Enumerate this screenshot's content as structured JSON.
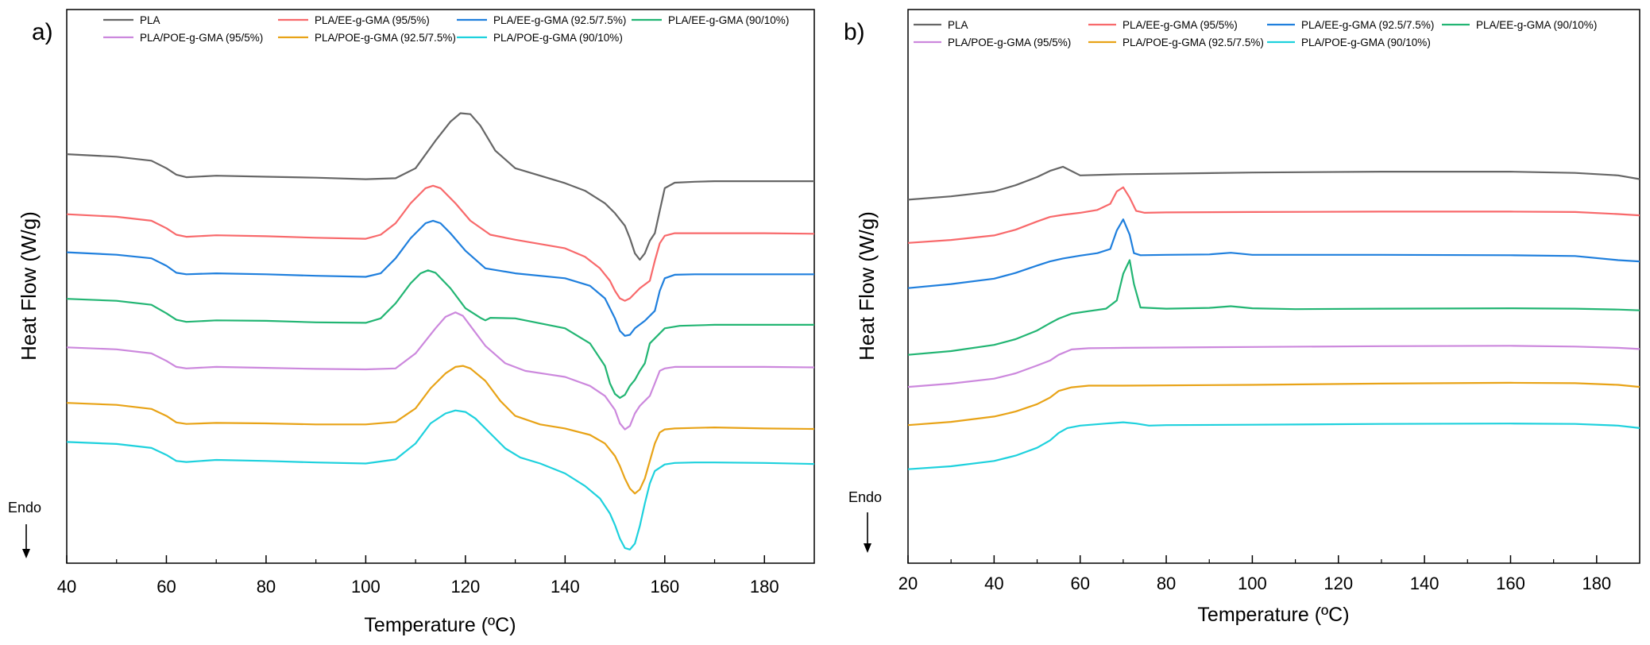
{
  "chart_data": [
    {
      "panel_label": "a)",
      "type": "line",
      "title": "",
      "xlabel": "Temperature (ºC)",
      "ylabel": "Heat Flow (W/g)",
      "xlim": [
        40,
        190
      ],
      "xticks": [
        40,
        60,
        80,
        100,
        120,
        140,
        160,
        180
      ],
      "ylim": [
        0,
        100
      ],
      "y_ticks_shown": false,
      "endo_label": "Endo",
      "legend_position": "top",
      "series": [
        {
          "name": "PLA",
          "color": "#666666",
          "x": [
            40,
            50,
            57,
            60,
            62,
            64,
            70,
            80,
            90,
            100,
            106,
            110,
            114,
            117,
            119,
            121,
            123,
            126,
            130,
            135,
            140,
            144,
            148,
            150,
            152,
            153,
            154,
            155,
            156,
            157,
            158,
            159,
            160,
            162,
            166,
            170,
            180,
            190
          ],
          "y": [
            80.3,
            79.8,
            79,
            77.5,
            76.2,
            75.7,
            76,
            75.8,
            75.6,
            75.3,
            75.5,
            77.5,
            83,
            86.8,
            88.5,
            88.3,
            86,
            81,
            77.5,
            76,
            74.5,
            73,
            70.5,
            68.5,
            66,
            63.5,
            60.5,
            59.2,
            60.5,
            63,
            64.5,
            69,
            73.5,
            74.6,
            74.8,
            74.9,
            74.9,
            74.9
          ]
        },
        {
          "name": "PLA/EE-g-GMA (95/5%)",
          "color": "#F8696B",
          "x": [
            40,
            50,
            57,
            60,
            62,
            64,
            70,
            80,
            90,
            100,
            103,
            106,
            109,
            112,
            113.5,
            115,
            118,
            121,
            125,
            130,
            140,
            144,
            147,
            149,
            150,
            151,
            152,
            153,
            155,
            157,
            158,
            159,
            160,
            162,
            166,
            170,
            180,
            190
          ],
          "y": [
            68.3,
            67.8,
            67,
            65.5,
            64.2,
            63.8,
            64.1,
            63.9,
            63.6,
            63.4,
            64.2,
            66.5,
            70.5,
            73.5,
            74,
            73.5,
            70.5,
            67,
            64.2,
            63.2,
            61.5,
            59.8,
            57.5,
            55,
            53,
            51.5,
            51,
            51.5,
            53.5,
            55,
            59,
            62.5,
            64,
            64.5,
            64.5,
            64.5,
            64.5,
            64.4
          ]
        },
        {
          "name": "PLA/EE-g-GMA (92.5/7.5%)",
          "color": "#1F7FDD",
          "x": [
            40,
            50,
            57,
            60,
            62,
            64,
            70,
            80,
            90,
            100,
            103,
            106,
            109,
            112,
            113.5,
            115,
            117,
            120,
            124,
            127,
            130,
            140,
            145,
            148,
            150,
            151,
            152,
            153,
            154,
            156,
            158,
            159,
            160,
            162,
            166,
            170,
            180,
            190
          ],
          "y": [
            60.7,
            60.2,
            59.5,
            58,
            56.6,
            56.3,
            56.5,
            56.3,
            56,
            55.8,
            56.5,
            59.5,
            63.5,
            66.5,
            67,
            66.5,
            64.5,
            61,
            57.5,
            57,
            56.5,
            55.5,
            54,
            51.5,
            47.5,
            45,
            44,
            44.2,
            45.5,
            47,
            49,
            53,
            55.5,
            56.2,
            56.3,
            56.3,
            56.3,
            56.3
          ]
        },
        {
          "name": "PLA/EE-g-GMA (90/10%)",
          "color": "#22B573",
          "x": [
            40,
            50,
            57,
            60,
            62,
            64,
            70,
            80,
            90,
            100,
            103,
            106,
            109,
            111,
            112.5,
            114,
            117,
            120,
            123,
            124,
            125,
            130,
            140,
            145,
            148,
            149,
            150,
            151,
            152,
            153,
            154,
            155,
            156,
            157,
            160,
            163,
            170,
            180,
            190
          ],
          "y": [
            51.4,
            51,
            50.2,
            48.5,
            47.2,
            46.8,
            47.1,
            47,
            46.7,
            46.6,
            47.5,
            50.5,
            54.5,
            56.5,
            57.1,
            56.6,
            53.5,
            49.5,
            47.6,
            47.1,
            47.6,
            47.5,
            45.5,
            42.5,
            38,
            34.5,
            32.4,
            31.6,
            32.2,
            34,
            35.2,
            37,
            38.5,
            42.5,
            45.5,
            46,
            46.2,
            46.2,
            46.2
          ]
        },
        {
          "name": "PLA/POE-g-GMA (95/5%)",
          "color": "#CC88DD",
          "x": [
            40,
            50,
            57,
            60,
            62,
            64,
            70,
            80,
            90,
            100,
            106,
            110,
            114,
            116,
            118,
            119.5,
            121,
            124,
            128,
            132,
            136,
            140,
            145,
            148,
            150,
            151,
            152,
            153,
            154,
            155,
            156,
            157,
            158,
            159,
            160,
            162,
            166,
            170,
            180,
            190
          ],
          "y": [
            41.7,
            41.3,
            40.5,
            39,
            37.8,
            37.5,
            37.8,
            37.6,
            37.4,
            37.3,
            37.5,
            40.5,
            45.5,
            47.8,
            48.7,
            48,
            46,
            42,
            38.5,
            37,
            36.4,
            35.8,
            34,
            32,
            29.2,
            26.5,
            25.3,
            26,
            28.5,
            30,
            31,
            32,
            34.5,
            37,
            37.5,
            37.8,
            37.8,
            37.8,
            37.8,
            37.7
          ]
        },
        {
          "name": "PLA/POE-g-GMA (92.5/7.5%)",
          "color": "#E8A317",
          "x": [
            40,
            50,
            57,
            60,
            62,
            64,
            70,
            80,
            90,
            100,
            106,
            110,
            113,
            116,
            118,
            119.5,
            121,
            124,
            127,
            130,
            135,
            140,
            145,
            148,
            150,
            151,
            152,
            153,
            154,
            155,
            156,
            157,
            158,
            159,
            160,
            162,
            166,
            170,
            180,
            190
          ],
          "y": [
            30.6,
            30.2,
            29.4,
            28,
            26.7,
            26.4,
            26.6,
            26.5,
            26.3,
            26.3,
            26.8,
            29.5,
            33.5,
            36.5,
            37.8,
            38,
            37.5,
            35,
            31,
            28,
            26.3,
            25.5,
            24.2,
            22.5,
            20,
            18,
            15.5,
            13.5,
            12.5,
            13.3,
            15.5,
            19,
            22.5,
            24.7,
            25.3,
            25.5,
            25.6,
            25.7,
            25.5,
            25.4
          ]
        },
        {
          "name": "PLA/POE-g-GMA (90/10%)",
          "color": "#1ED1DD",
          "x": [
            40,
            50,
            57,
            60,
            62,
            64,
            70,
            80,
            90,
            100,
            106,
            110,
            113,
            116,
            118,
            120,
            122,
            125,
            128,
            131,
            135,
            140,
            144,
            147,
            149,
            150,
            151,
            152,
            153,
            154,
            155,
            156,
            157,
            158,
            160,
            162,
            166,
            170,
            180,
            190
          ],
          "y": [
            22.8,
            22.4,
            21.6,
            20.2,
            19,
            18.8,
            19.2,
            19,
            18.7,
            18.5,
            19.3,
            22.5,
            26.5,
            28.5,
            29.1,
            28.8,
            27.5,
            24.5,
            21.5,
            19.7,
            18.5,
            16.5,
            14,
            11.5,
            8.5,
            6.2,
            3.5,
            1.6,
            1.3,
            2.5,
            6,
            10.5,
            14.5,
            17,
            18.3,
            18.6,
            18.7,
            18.7,
            18.6,
            18.4
          ]
        }
      ]
    },
    {
      "panel_label": "b)",
      "type": "line",
      "title": "",
      "xlabel": "Temperature (ºC)",
      "ylabel": "Heat Flow (W/g)",
      "xlim": [
        20,
        190
      ],
      "xticks": [
        20,
        40,
        60,
        80,
        100,
        120,
        140,
        160,
        180
      ],
      "ylim": [
        0,
        100
      ],
      "y_ticks_shown": false,
      "endo_label": "Endo",
      "legend_position": "top",
      "series": [
        {
          "name": "PLA",
          "color": "#666666",
          "x": [
            20,
            30,
            40,
            45,
            50,
            53,
            56,
            60,
            70,
            100,
            130,
            160,
            175,
            185,
            190
          ],
          "y": [
            78.5,
            79.3,
            80.5,
            82,
            84,
            85.5,
            86.5,
            84.4,
            84.7,
            85.1,
            85.3,
            85.3,
            85,
            84.4,
            83.5
          ]
        },
        {
          "name": "PLA/EE-g-GMA (95/5%)",
          "color": "#F8696B",
          "x": [
            20,
            30,
            40,
            45,
            50,
            53,
            56,
            60,
            64,
            67,
            68.5,
            70,
            71.5,
            73,
            75,
            80,
            100,
            130,
            160,
            175,
            185,
            190
          ],
          "y": [
            68,
            68.7,
            69.8,
            71.2,
            73.2,
            74.3,
            74.8,
            75.3,
            76,
            77.5,
            80.5,
            81.5,
            79,
            75.8,
            75.3,
            75.4,
            75.5,
            75.6,
            75.6,
            75.5,
            75,
            74.7
          ]
        },
        {
          "name": "PLA/EE-g-GMA (92.5/7.5%)",
          "color": "#1F7FDD",
          "x": [
            20,
            30,
            40,
            45,
            50,
            53,
            56,
            60,
            64,
            67,
            68.5,
            70,
            71.5,
            72.5,
            74,
            80,
            90,
            95,
            100,
            130,
            160,
            175,
            185,
            190
          ],
          "y": [
            57,
            58,
            59.3,
            60.7,
            62.5,
            63.5,
            64.2,
            64.9,
            65.5,
            66.5,
            71,
            73.7,
            70,
            65.5,
            65,
            65.1,
            65.2,
            65.6,
            65.1,
            65.1,
            65,
            64.8,
            63.8,
            63.5
          ]
        },
        {
          "name": "PLA/EE-g-GMA (90/10%)",
          "color": "#22B573",
          "x": [
            20,
            30,
            40,
            45,
            50,
            53,
            55,
            58,
            62,
            66,
            68.5,
            70,
            71.5,
            72.5,
            74,
            80,
            90,
            95,
            100,
            110,
            130,
            160,
            175,
            185,
            190
          ],
          "y": [
            40.8,
            41.7,
            43.2,
            44.6,
            46.7,
            48.5,
            49.6,
            50.8,
            51.4,
            52,
            54,
            60.5,
            63.8,
            58,
            52.3,
            52,
            52.2,
            52.6,
            52.1,
            51.9,
            52,
            52.1,
            52,
            51.8,
            51.6
          ]
        },
        {
          "name": "PLA/POE-g-GMA (95/5%)",
          "color": "#CC88DD",
          "x": [
            20,
            30,
            40,
            45,
            50,
            53,
            55,
            58,
            62,
            70,
            100,
            130,
            160,
            175,
            185,
            190
          ],
          "y": [
            33,
            33.8,
            35,
            36.3,
            38.2,
            39.4,
            40.8,
            42.1,
            42.4,
            42.5,
            42.7,
            42.9,
            43,
            42.8,
            42.5,
            42.2
          ]
        },
        {
          "name": "PLA/POE-g-GMA (92.5/7.5%)",
          "color": "#E8A317",
          "x": [
            20,
            30,
            40,
            45,
            50,
            53,
            55,
            58,
            62,
            70,
            100,
            130,
            160,
            175,
            185,
            190
          ],
          "y": [
            23.7,
            24.5,
            25.8,
            27,
            28.8,
            30.4,
            32,
            32.9,
            33.3,
            33.3,
            33.5,
            33.8,
            34,
            33.9,
            33.5,
            33
          ]
        },
        {
          "name": "PLA/POE-g-GMA (90/10%)",
          "color": "#1ED1DD",
          "x": [
            20,
            30,
            40,
            45,
            50,
            53,
            55,
            57,
            60,
            66,
            70,
            73,
            76,
            80,
            100,
            130,
            160,
            175,
            185,
            190
          ],
          "y": [
            13,
            13.7,
            15,
            16.3,
            18.2,
            20,
            21.8,
            23,
            23.6,
            24.1,
            24.4,
            24.1,
            23.6,
            23.7,
            23.8,
            24,
            24.1,
            24,
            23.6,
            23
          ]
        }
      ]
    }
  ]
}
